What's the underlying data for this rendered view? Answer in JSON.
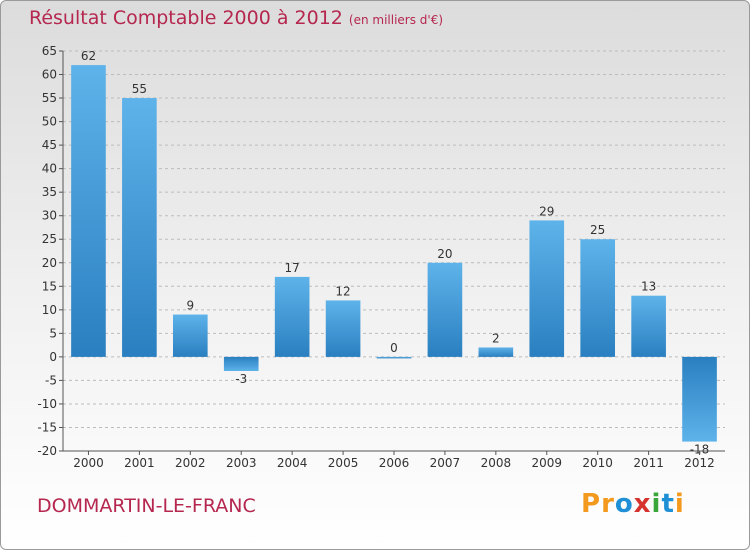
{
  "title": "Résultat Comptable 2000 à 2012",
  "unit_note": "(en milliers d'€)",
  "city": "DOMMARTIN-LE-FRANC",
  "logo": {
    "text": "Proxiti",
    "letters": [
      {
        "ch": "P",
        "color": "#f39a1e"
      },
      {
        "ch": "r",
        "color": "#f39a1e"
      },
      {
        "ch": "o",
        "color": "#1f8fd6"
      },
      {
        "ch": "x",
        "color": "#d6322e"
      },
      {
        "ch": "i",
        "color": "#3aa63a"
      },
      {
        "ch": "t",
        "color": "#1f8fd6"
      },
      {
        "ch": "i",
        "color": "#f39a1e"
      }
    ]
  },
  "colors": {
    "accent": "#b5274f",
    "bar_dark": "#2a7fc0",
    "bar_light": "#5eb3ea",
    "grid": "#bcbcbc",
    "axis_text": "#333333"
  },
  "chart_data": {
    "type": "bar",
    "title": "Résultat Comptable 2000 à 2012",
    "xlabel": "",
    "ylabel": "(en milliers d'€)",
    "categories": [
      "2000",
      "2001",
      "2002",
      "2003",
      "2004",
      "2005",
      "2006",
      "2007",
      "2008",
      "2009",
      "2010",
      "2011",
      "2012"
    ],
    "values": [
      62,
      55,
      9,
      -3,
      17,
      12,
      0,
      20,
      2,
      29,
      25,
      13,
      -18
    ],
    "ylim": [
      -20,
      65
    ],
    "yticks": [
      -20,
      -15,
      -10,
      -5,
      0,
      5,
      10,
      15,
      20,
      25,
      30,
      35,
      40,
      45,
      50,
      55,
      60,
      65
    ],
    "grid": true
  }
}
